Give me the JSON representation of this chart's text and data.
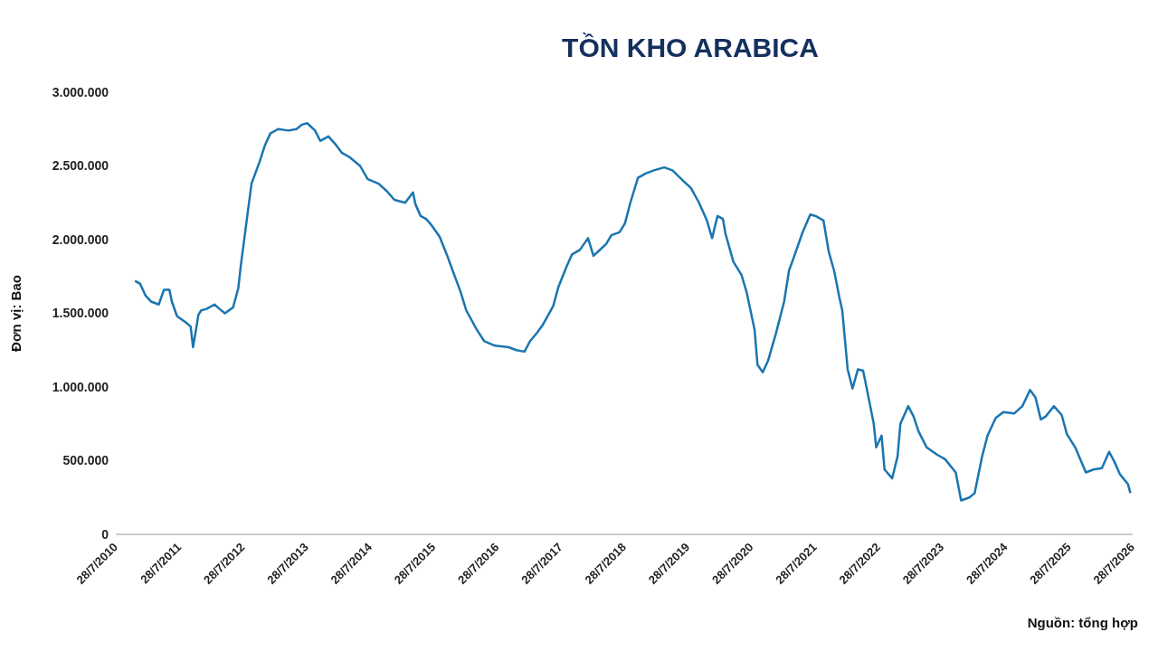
{
  "chart_data": {
    "type": "line",
    "title": "TỒN KHO ARABICA",
    "ylabel": "Đơn vị: Bao",
    "annotations": [
      "Nguồn: tổng hợp"
    ],
    "x": [
      "2010-11-15",
      "2010-12-15",
      "2011-01-15",
      "2011-02-15",
      "2011-04-01",
      "2011-05-01",
      "2011-06-01",
      "2011-06-15",
      "2011-07-15",
      "2011-09-01",
      "2011-10-01",
      "2011-10-15",
      "2011-11-15",
      "2011-12-01",
      "2012-01-01",
      "2012-02-15",
      "2012-03-15",
      "2012-04-15",
      "2012-06-01",
      "2012-07-01",
      "2012-07-15",
      "2012-08-15",
      "2012-09-15",
      "2012-11-01",
      "2012-12-01",
      "2013-01-01",
      "2013-02-15",
      "2013-04-15",
      "2013-06-01",
      "2013-07-01",
      "2013-08-01",
      "2013-09-15",
      "2013-10-15",
      "2013-12-01",
      "2014-01-15",
      "2014-02-15",
      "2014-04-01",
      "2014-06-01",
      "2014-07-15",
      "2014-09-15",
      "2014-11-01",
      "2014-12-15",
      "2015-02-15",
      "2015-04-01",
      "2015-04-15",
      "2015-05-15",
      "2015-06-15",
      "2015-07-15",
      "2015-09-01",
      "2015-10-15",
      "2015-11-15",
      "2016-01-01",
      "2016-02-01",
      "2016-04-01",
      "2016-05-15",
      "2016-07-15",
      "2016-10-01",
      "2016-11-15",
      "2017-01-01",
      "2017-02-01",
      "2017-03-15",
      "2017-04-15",
      "2017-06-15",
      "2017-07-15",
      "2017-09-01",
      "2017-10-01",
      "2017-11-15",
      "2018-01-01",
      "2018-02-01",
      "2018-03-01",
      "2018-04-15",
      "2018-05-15",
      "2018-07-01",
      "2018-08-01",
      "2018-09-01",
      "2018-10-15",
      "2018-12-01",
      "2019-01-15",
      "2019-03-15",
      "2019-05-01",
      "2019-07-01",
      "2019-08-15",
      "2019-10-01",
      "2019-11-15",
      "2019-12-15",
      "2020-01-15",
      "2020-02-15",
      "2020-03-01",
      "2020-04-15",
      "2020-06-01",
      "2020-07-01",
      "2020-08-15",
      "2020-09-01",
      "2020-10-01",
      "2020-11-01",
      "2020-12-15",
      "2021-02-01",
      "2021-03-01",
      "2021-04-01",
      "2021-05-15",
      "2021-07-01",
      "2021-08-01",
      "2021-09-15",
      "2021-10-15",
      "2021-11-15",
      "2021-12-15",
      "2022-01-01",
      "2022-02-01",
      "2022-03-01",
      "2022-04-01",
      "2022-05-01",
      "2022-06-01",
      "2022-07-01",
      "2022-07-15",
      "2022-08-15",
      "2022-09-01",
      "2022-10-15",
      "2022-11-15",
      "2022-12-01",
      "2023-01-15",
      "2023-02-15",
      "2023-03-15",
      "2023-05-01",
      "2023-07-01",
      "2023-08-15",
      "2023-10-15",
      "2023-11-15",
      "2024-01-01",
      "2024-02-01",
      "2024-03-15",
      "2024-04-15",
      "2024-06-01",
      "2024-07-15",
      "2024-09-15",
      "2024-11-01",
      "2024-12-15",
      "2025-01-15",
      "2025-02-15",
      "2025-03-15",
      "2025-05-01",
      "2025-06-15",
      "2025-07-15",
      "2025-09-01",
      "2025-11-01",
      "2025-12-15",
      "2026-02-01",
      "2026-03-15",
      "2026-04-15",
      "2026-05-15",
      "2026-07-01",
      "2026-07-15"
    ],
    "series": [
      {
        "color": "#1a75b0",
        "values": [
          1720000,
          1700000,
          1620000,
          1580000,
          1560000,
          1660000,
          1660000,
          1580000,
          1480000,
          1440000,
          1410000,
          1270000,
          1490000,
          1520000,
          1530000,
          1560000,
          1530000,
          1500000,
          1540000,
          1670000,
          1820000,
          2100000,
          2380000,
          2530000,
          2640000,
          2720000,
          2750000,
          2740000,
          2750000,
          2780000,
          2790000,
          2740000,
          2670000,
          2700000,
          2640000,
          2590000,
          2560000,
          2500000,
          2410000,
          2380000,
          2330000,
          2270000,
          2250000,
          2320000,
          2240000,
          2160000,
          2140000,
          2100000,
          2020000,
          1890000,
          1790000,
          1640000,
          1520000,
          1390000,
          1310000,
          1280000,
          1270000,
          1250000,
          1240000,
          1310000,
          1370000,
          1420000,
          1550000,
          1680000,
          1820000,
          1900000,
          1930000,
          2010000,
          1890000,
          1920000,
          1970000,
          2030000,
          2050000,
          2110000,
          2250000,
          2420000,
          2450000,
          2470000,
          2490000,
          2470000,
          2400000,
          2350000,
          2250000,
          2130000,
          2010000,
          2160000,
          2140000,
          2040000,
          1850000,
          1760000,
          1640000,
          1390000,
          1150000,
          1100000,
          1180000,
          1360000,
          1580000,
          1790000,
          1890000,
          2040000,
          2170000,
          2160000,
          2130000,
          1920000,
          1790000,
          1610000,
          1520000,
          1120000,
          990000,
          1120000,
          1110000,
          930000,
          750000,
          590000,
          670000,
          440000,
          380000,
          530000,
          750000,
          870000,
          800000,
          700000,
          590000,
          540000,
          510000,
          420000,
          230000,
          250000,
          280000,
          530000,
          670000,
          790000,
          830000,
          820000,
          870000,
          980000,
          930000,
          780000,
          800000,
          870000,
          810000,
          680000,
          590000,
          420000,
          440000,
          450000,
          560000,
          490000,
          410000,
          340000,
          280000
        ]
      }
    ],
    "xlim": [
      "2010-07-28",
      "2026-07-28"
    ],
    "xticks": [
      {
        "value": "2010-07-28",
        "label": "28/7/2010"
      },
      {
        "value": "2011-07-28",
        "label": "28/7/2011"
      },
      {
        "value": "2012-07-28",
        "label": "28/7/2012"
      },
      {
        "value": "2013-07-28",
        "label": "28/7/2013"
      },
      {
        "value": "2014-07-28",
        "label": "28/7/2014"
      },
      {
        "value": "2015-07-28",
        "label": "28/7/2015"
      },
      {
        "value": "2016-07-28",
        "label": "28/7/2016"
      },
      {
        "value": "2017-07-28",
        "label": "28/7/2017"
      },
      {
        "value": "2018-07-28",
        "label": "28/7/2018"
      },
      {
        "value": "2019-07-28",
        "label": "28/7/2019"
      },
      {
        "value": "2020-07-28",
        "label": "28/7/2020"
      },
      {
        "value": "2021-07-28",
        "label": "28/7/2021"
      },
      {
        "value": "2022-07-28",
        "label": "28/7/2022"
      },
      {
        "value": "2023-07-28",
        "label": "28/7/2023"
      },
      {
        "value": "2024-07-28",
        "label": "28/7/2024"
      },
      {
        "value": "2025-07-28",
        "label": "28/7/2025"
      },
      {
        "value": "2026-07-28",
        "label": "28/7/2026"
      }
    ],
    "ylim": [
      0,
      3000000
    ],
    "yticks": [
      0,
      {
        "value": 500000,
        "label": "500.000"
      },
      {
        "value": 1000000,
        "label": "1.000.000"
      },
      {
        "value": 1500000,
        "label": "1.500.000"
      },
      {
        "value": 2000000,
        "label": "2.000.000"
      },
      {
        "value": 2500000,
        "label": "2.500.000"
      },
      {
        "value": 3000000,
        "label": "3.000.000"
      }
    ],
    "marker": "none",
    "line_style": "solid"
  }
}
